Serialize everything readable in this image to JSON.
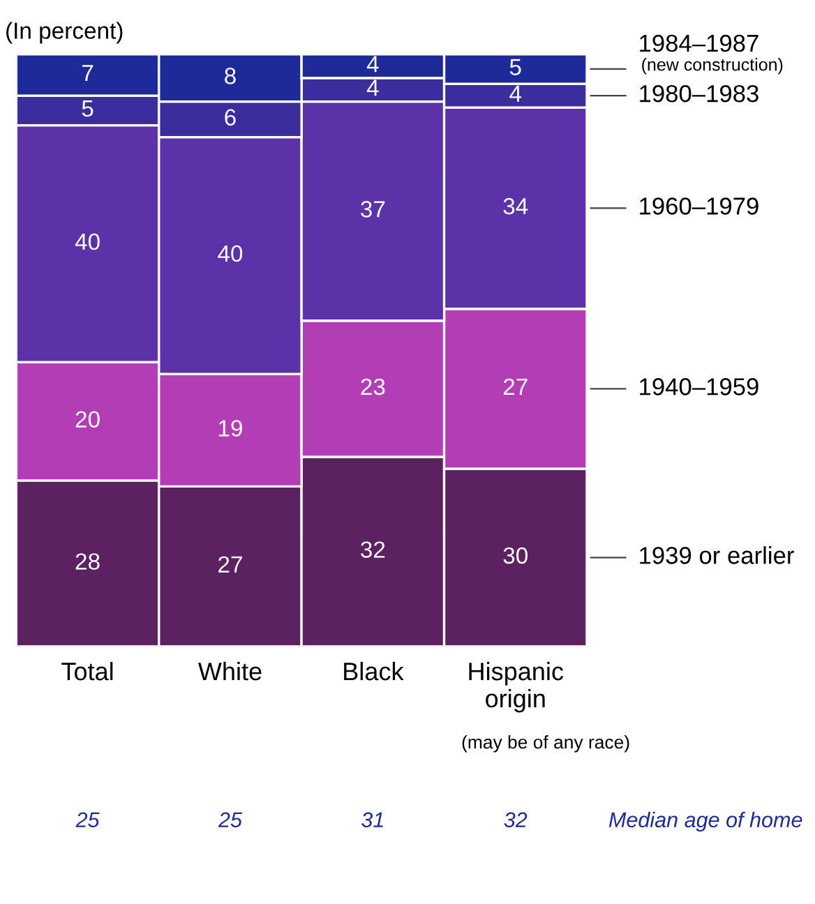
{
  "chart_data": {
    "type": "bar",
    "stacked": true,
    "data_labels": true,
    "legend": false,
    "grid": false,
    "tick_labels": "x",
    "title": "(In percent)",
    "categories": [
      "Total",
      "White",
      "Black",
      "Hispanic\norigin"
    ],
    "series": [
      {
        "name": "1939 or earlier",
        "color": "#5c2160",
        "values": [
          28,
          27,
          32,
          30
        ]
      },
      {
        "name": "1940–1959",
        "color": "#b23db4",
        "values": [
          20,
          19,
          23,
          27
        ]
      },
      {
        "name": "1960–1979",
        "color": "#5b32a8",
        "values": [
          40,
          40,
          37,
          34
        ]
      },
      {
        "name": "1980–1983",
        "color": "#3b2d9e",
        "values": [
          5,
          6,
          4,
          4
        ]
      },
      {
        "name": "1984–1987",
        "color": "#1f2a9a",
        "values": [
          7,
          8,
          4,
          5
        ]
      }
    ],
    "annotations": [
      "(new construction)",
      "(may be of any race)",
      "25",
      "25",
      "31",
      "32",
      "Median age of home"
    ]
  }
}
